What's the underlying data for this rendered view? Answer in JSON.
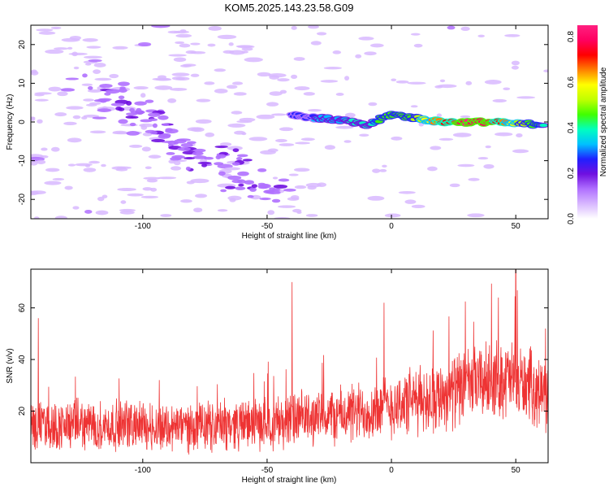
{
  "chart_data": [
    {
      "type": "heatmap",
      "title": "KOM5.2025.143.23.58.G09",
      "xlabel": "Height of straight line (km)",
      "ylabel": "Frequency (Hz)",
      "xlim": [
        -145,
        63
      ],
      "ylim": [
        -25,
        25
      ],
      "x_ticks": [
        -100,
        -50,
        0,
        50
      ],
      "x_tick_labels": [
        "-100",
        "-50",
        "0",
        "50"
      ],
      "y_ticks": [
        -20,
        -10,
        0,
        10,
        20
      ],
      "y_tick_labels": [
        "-20",
        "-10",
        "0",
        "10",
        "20"
      ],
      "colorbar": {
        "label": "Normalized spectral amplitude",
        "range": [
          0,
          0.85
        ],
        "ticks": [
          0,
          0.2,
          0.4,
          0.6,
          0.8
        ],
        "tick_labels": [
          "0.0",
          "0.2",
          "0.4",
          "0.6",
          "0.8"
        ],
        "colormap": [
          "#ffffff",
          "#d8b8ff",
          "#b070ff",
          "#7010e0",
          "#2020ff",
          "#00c0ff",
          "#00ffc0",
          "#40ff00",
          "#c0ff00",
          "#ffff00",
          "#ff8000",
          "#ff0000",
          "#ff0060",
          "#ff2080"
        ]
      },
      "ridge": {
        "description_points": [
          {
            "x": -40,
            "y": 2.0,
            "v": 0.25
          },
          {
            "x": -30,
            "y": 1.0,
            "v": 0.3
          },
          {
            "x": -20,
            "y": 0.5,
            "v": 0.35
          },
          {
            "x": -10,
            "y": -1.0,
            "v": 0.4
          },
          {
            "x": 0,
            "y": 2.0,
            "v": 0.45
          },
          {
            "x": 10,
            "y": 1.0,
            "v": 0.5
          },
          {
            "x": 20,
            "y": 0.0,
            "v": 0.7
          },
          {
            "x": 30,
            "y": 0.0,
            "v": 0.82
          },
          {
            "x": 40,
            "y": 0.0,
            "v": 0.8
          },
          {
            "x": 50,
            "y": -0.5,
            "v": 0.55
          },
          {
            "x": 62,
            "y": -0.5,
            "v": 0.4
          }
        ]
      },
      "grid": false,
      "legend": "none"
    },
    {
      "type": "line",
      "title": "",
      "xlabel": "Height of straight line (km)",
      "ylabel": "SNR (v/v)",
      "xlim": [
        -145,
        63
      ],
      "ylim": [
        0,
        75
      ],
      "x_ticks": [
        -100,
        -50,
        0,
        50
      ],
      "x_tick_labels": [
        "-100",
        "-50",
        "0",
        "50"
      ],
      "y_ticks": [
        20,
        40,
        60
      ],
      "y_tick_labels": [
        "20",
        "40",
        "60"
      ],
      "series": [
        {
          "color": "#ee3333",
          "x": [
            -145,
            -135,
            -125,
            -115,
            -105,
            -95,
            -85,
            -75,
            -65,
            -55,
            -45,
            -35,
            -25,
            -15,
            -5,
            5,
            15,
            25,
            35,
            45,
            55,
            63
          ],
          "mean": [
            15,
            14,
            15,
            14,
            15,
            14,
            14,
            14,
            15,
            15,
            16,
            17,
            18,
            19,
            21,
            23,
            25,
            28,
            31,
            33,
            30,
            26
          ],
          "spread": [
            8,
            8,
            8,
            8,
            8,
            8,
            8,
            8,
            8,
            8,
            9,
            9,
            9,
            10,
            10,
            11,
            11,
            12,
            12,
            13,
            12,
            11
          ],
          "peaks": [
            {
              "x": -142,
              "y": 56
            },
            {
              "x": -40,
              "y": 70
            },
            {
              "x": -3,
              "y": 62
            },
            {
              "x": 50,
              "y": 75
            },
            {
              "x": 43,
              "y": 64
            },
            {
              "x": 62,
              "y": 52
            }
          ]
        }
      ],
      "grid": false,
      "legend": "none"
    }
  ]
}
